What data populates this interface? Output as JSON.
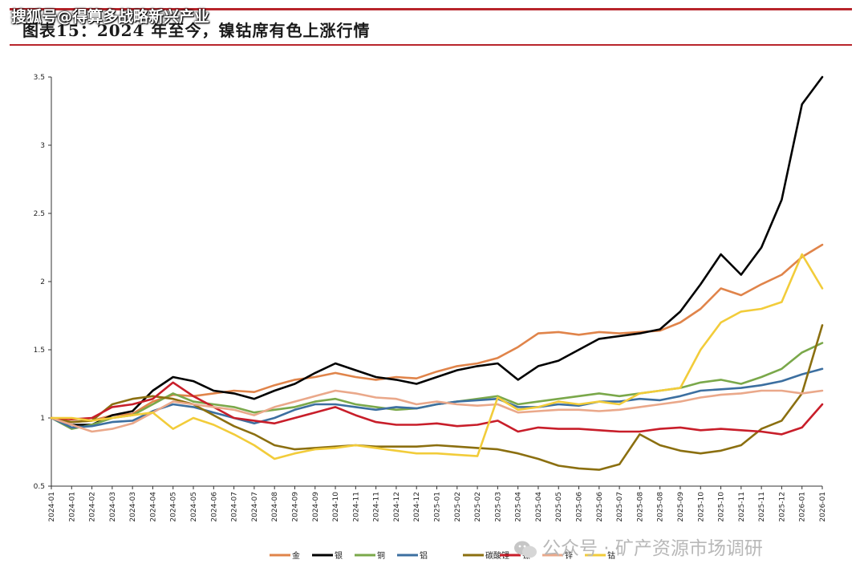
{
  "header": {
    "title": "图表15：2024 年至今，镍钴席有色上涨行情",
    "watermark_top": "搜狐号@得算多战略新兴产业",
    "watermark_bottom": "公众号 · 矿产资源市场调研"
  },
  "colors": {
    "frame_red": "#b8252b"
  },
  "chart_data": {
    "type": "line",
    "title": "",
    "xlabel": "",
    "ylabel": "",
    "ylim": [
      0.5,
      3.5
    ],
    "yticks": [
      0.5,
      1,
      1.5,
      2,
      2.5,
      3,
      3.5
    ],
    "x": [
      "2024-01",
      "2024-01",
      "2024-02",
      "2024-03",
      "2024-03",
      "2024-04",
      "2024-05",
      "2024-05",
      "2024-06",
      "2024-07",
      "2024-07",
      "2024-08",
      "2024-09",
      "2024-09",
      "2024-10",
      "2024-11",
      "2024-11",
      "2024-12",
      "2024-12",
      "2025-01",
      "2025-02",
      "2025-02",
      "2025-03",
      "2025-04",
      "2025-04",
      "2025-05",
      "2025-06",
      "2025-06",
      "2025-07",
      "2025-08",
      "2025-08",
      "2025-09",
      "2025-10",
      "2025-10",
      "2025-11",
      "2025-11",
      "2025-12",
      "2026-01",
      "2026-01"
    ],
    "grid": false,
    "legend_position": "bottom",
    "series": [
      {
        "name": "金",
        "color": "#e0844a",
        "values": [
          1.0,
          0.97,
          0.98,
          1.02,
          1.03,
          1.12,
          1.17,
          1.16,
          1.18,
          1.2,
          1.19,
          1.24,
          1.28,
          1.3,
          1.33,
          1.3,
          1.28,
          1.3,
          1.29,
          1.34,
          1.38,
          1.4,
          1.44,
          1.52,
          1.62,
          1.63,
          1.61,
          1.63,
          1.62,
          1.63,
          1.64,
          1.7,
          1.8,
          1.95,
          1.9,
          1.98,
          2.05,
          2.18,
          2.27
        ]
      },
      {
        "name": "银",
        "color": "#000000",
        "values": [
          1.0,
          0.95,
          0.95,
          1.02,
          1.05,
          1.2,
          1.3,
          1.27,
          1.2,
          1.18,
          1.14,
          1.2,
          1.25,
          1.33,
          1.4,
          1.35,
          1.3,
          1.28,
          1.25,
          1.3,
          1.35,
          1.38,
          1.4,
          1.28,
          1.38,
          1.42,
          1.5,
          1.58,
          1.6,
          1.62,
          1.65,
          1.78,
          1.98,
          2.2,
          2.05,
          2.25,
          2.6,
          3.3,
          3.5
        ]
      },
      {
        "name": "铜",
        "color": "#7aa84a",
        "values": [
          1.0,
          0.92,
          0.95,
          1.0,
          1.02,
          1.1,
          1.18,
          1.12,
          1.1,
          1.08,
          1.04,
          1.06,
          1.08,
          1.12,
          1.14,
          1.1,
          1.08,
          1.06,
          1.07,
          1.1,
          1.12,
          1.14,
          1.16,
          1.1,
          1.12,
          1.14,
          1.16,
          1.18,
          1.16,
          1.18,
          1.2,
          1.22,
          1.26,
          1.28,
          1.25,
          1.3,
          1.36,
          1.48,
          1.55
        ]
      },
      {
        "name": "铝",
        "color": "#3c6fa0",
        "values": [
          1.0,
          0.93,
          0.94,
          0.97,
          0.98,
          1.05,
          1.1,
          1.08,
          1.04,
          1.0,
          0.96,
          1.0,
          1.06,
          1.1,
          1.1,
          1.08,
          1.06,
          1.08,
          1.07,
          1.1,
          1.12,
          1.13,
          1.14,
          1.08,
          1.08,
          1.1,
          1.09,
          1.12,
          1.12,
          1.14,
          1.13,
          1.16,
          1.2,
          1.21,
          1.22,
          1.24,
          1.27,
          1.32,
          1.36
        ]
      },
      {
        "name": "碳酸锂",
        "color": "#8b6f10",
        "values": [
          1.0,
          0.97,
          0.98,
          1.1,
          1.14,
          1.16,
          1.14,
          1.1,
          1.02,
          0.94,
          0.88,
          0.8,
          0.77,
          0.78,
          0.79,
          0.8,
          0.79,
          0.79,
          0.79,
          0.8,
          0.79,
          0.78,
          0.77,
          0.74,
          0.7,
          0.65,
          0.63,
          0.62,
          0.66,
          0.88,
          0.8,
          0.76,
          0.74,
          0.76,
          0.8,
          0.92,
          0.98,
          1.18,
          1.68
        ]
      },
      {
        "name": "镍",
        "color": "#c81e2a",
        "values": [
          1.0,
          0.99,
          1.0,
          1.08,
          1.1,
          1.14,
          1.26,
          1.16,
          1.08,
          1.0,
          0.98,
          0.96,
          1.0,
          1.04,
          1.08,
          1.02,
          0.97,
          0.95,
          0.95,
          0.96,
          0.94,
          0.95,
          0.98,
          0.9,
          0.93,
          0.92,
          0.92,
          0.91,
          0.9,
          0.9,
          0.92,
          0.93,
          0.91,
          0.92,
          0.91,
          0.9,
          0.88,
          0.93,
          1.1
        ]
      },
      {
        "name": "锌",
        "color": "#eaa88a",
        "values": [
          1.0,
          0.95,
          0.9,
          0.92,
          0.96,
          1.04,
          1.12,
          1.1,
          1.08,
          1.06,
          1.02,
          1.08,
          1.12,
          1.16,
          1.2,
          1.18,
          1.15,
          1.14,
          1.1,
          1.12,
          1.1,
          1.09,
          1.1,
          1.04,
          1.05,
          1.06,
          1.06,
          1.05,
          1.06,
          1.08,
          1.1,
          1.12,
          1.15,
          1.17,
          1.18,
          1.2,
          1.2,
          1.18,
          1.2
        ]
      },
      {
        "name": "钴",
        "color": "#f2cc3a",
        "values": [
          1.0,
          1.0,
          0.98,
          1.0,
          1.02,
          1.04,
          0.92,
          1.0,
          0.95,
          0.88,
          0.8,
          0.7,
          0.74,
          0.77,
          0.78,
          0.8,
          0.78,
          0.76,
          0.74,
          0.74,
          0.73,
          0.72,
          1.15,
          1.06,
          1.08,
          1.12,
          1.1,
          1.12,
          1.1,
          1.18,
          1.2,
          1.22,
          1.5,
          1.7,
          1.78,
          1.8,
          1.85,
          2.2,
          1.95
        ]
      }
    ]
  }
}
